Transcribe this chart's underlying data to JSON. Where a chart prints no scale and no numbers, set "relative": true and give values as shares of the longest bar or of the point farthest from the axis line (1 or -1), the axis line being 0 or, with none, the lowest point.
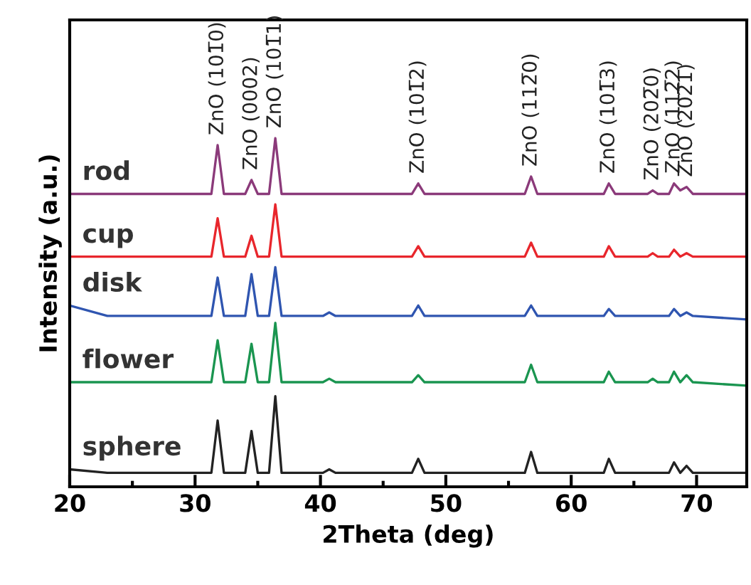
{
  "chart_data": {
    "type": "line",
    "relative": true,
    "xlabel": "2Theta (deg)",
    "ylabel": "Intensity (a.u.)",
    "xlim": [
      20,
      74
    ],
    "xticks": [
      20,
      30,
      40,
      50,
      60,
      70
    ],
    "tick_labels": "x",
    "grid": false,
    "legend": false,
    "marker": "none",
    "line_style": "solid",
    "x": [
      20,
      23,
      31.3,
      31.8,
      32.3,
      34.0,
      34.5,
      35.0,
      35.9,
      36.4,
      36.9,
      40.2,
      40.7,
      41.2,
      47.3,
      47.8,
      48.3,
      56.3,
      56.8,
      57.3,
      62.6,
      63.0,
      63.5,
      66.1,
      66.5,
      66.9,
      67.8,
      68.2,
      68.7,
      69.2,
      69.7,
      74
    ],
    "series": [
      {
        "name": "rod",
        "color": "#8b3a7a",
        "values": [
          0.84,
          0.84,
          0.84,
          0.98,
          0.84,
          0.84,
          0.88,
          0.84,
          0.84,
          1.0,
          0.84,
          0.84,
          0.84,
          0.84,
          0.84,
          0.87,
          0.84,
          0.84,
          0.89,
          0.84,
          0.84,
          0.87,
          0.84,
          0.84,
          0.85,
          0.84,
          0.84,
          0.87,
          0.85,
          0.86,
          0.84,
          0.84
        ]
      },
      {
        "name": "cup",
        "color": "#e8262c",
        "values": [
          0.66,
          0.66,
          0.66,
          0.77,
          0.66,
          0.66,
          0.72,
          0.66,
          0.66,
          0.81,
          0.66,
          0.66,
          0.66,
          0.66,
          0.66,
          0.69,
          0.66,
          0.66,
          0.7,
          0.66,
          0.66,
          0.69,
          0.66,
          0.66,
          0.67,
          0.66,
          0.66,
          0.68,
          0.66,
          0.67,
          0.66,
          0.66
        ]
      },
      {
        "name": "disk",
        "color": "#2f55b0",
        "values": [
          0.52,
          0.49,
          0.49,
          0.6,
          0.49,
          0.49,
          0.61,
          0.49,
          0.49,
          0.63,
          0.49,
          0.49,
          0.5,
          0.49,
          0.49,
          0.52,
          0.49,
          0.49,
          0.52,
          0.49,
          0.49,
          0.51,
          0.49,
          0.49,
          0.49,
          0.49,
          0.49,
          0.51,
          0.49,
          0.5,
          0.49,
          0.48
        ]
      },
      {
        "name": "flower",
        "color": "#1a9550",
        "values": [
          0.3,
          0.3,
          0.3,
          0.42,
          0.3,
          0.3,
          0.41,
          0.3,
          0.3,
          0.47,
          0.3,
          0.3,
          0.31,
          0.3,
          0.3,
          0.32,
          0.3,
          0.3,
          0.35,
          0.3,
          0.3,
          0.33,
          0.3,
          0.3,
          0.31,
          0.3,
          0.3,
          0.33,
          0.3,
          0.32,
          0.3,
          0.29
        ]
      },
      {
        "name": "sphere",
        "color": "#222222",
        "values": [
          0.05,
          0.04,
          0.04,
          0.19,
          0.04,
          0.04,
          0.16,
          0.04,
          0.04,
          0.26,
          0.04,
          0.04,
          0.05,
          0.04,
          0.04,
          0.08,
          0.04,
          0.04,
          0.1,
          0.04,
          0.04,
          0.08,
          0.04,
          0.04,
          0.04,
          0.04,
          0.04,
          0.07,
          0.04,
          0.06,
          0.04,
          0.04
        ]
      }
    ],
    "annotations": [
      {
        "text": "ZnO (101̅0)",
        "x": 31.8,
        "y": 0.98
      },
      {
        "text": "ZnO (0002)",
        "x": 34.5,
        "y": 0.88
      },
      {
        "text": "ZnO (101̅1)",
        "x": 36.4,
        "y": 1.0
      },
      {
        "text": "ZnO (101̅2)",
        "x": 47.8,
        "y": 0.87
      },
      {
        "text": "ZnO (112̅0)",
        "x": 56.8,
        "y": 0.89
      },
      {
        "text": "ZnO (101̅3)",
        "x": 63.0,
        "y": 0.87
      },
      {
        "text": "ZnO (202̅0)",
        "x": 66.5,
        "y": 0.85
      },
      {
        "text": "ZnO (112̅2)",
        "x": 68.2,
        "y": 0.87
      },
      {
        "text": "ZnO (202̅1)",
        "x": 69.2,
        "y": 0.86
      }
    ]
  }
}
